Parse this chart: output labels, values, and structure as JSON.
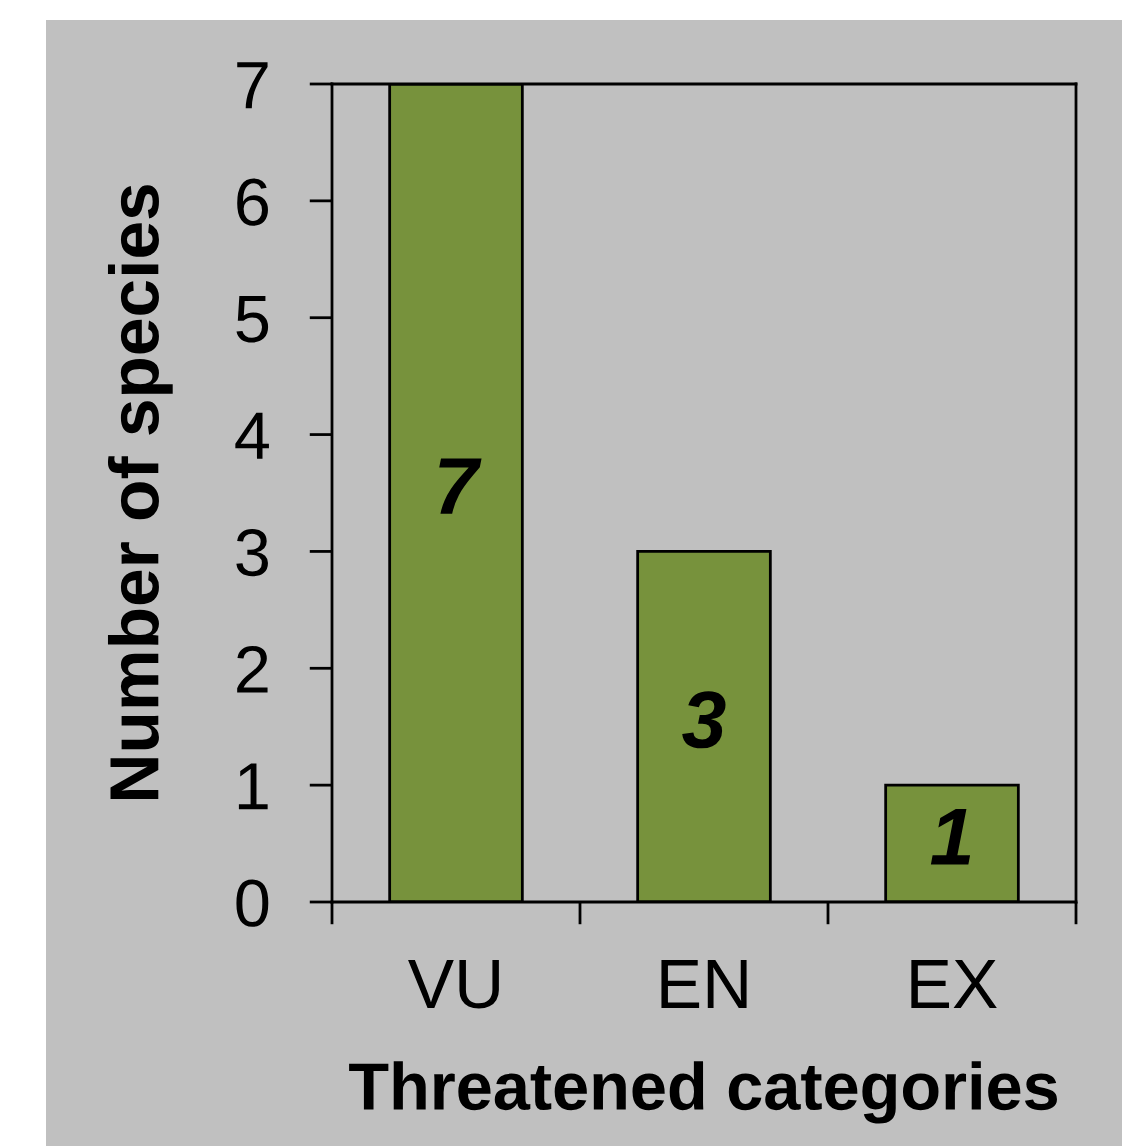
{
  "chart_data": {
    "type": "bar",
    "xlabel": "Threatened categories",
    "ylabel": "Number of species",
    "categories": [
      "VU",
      "EN",
      "EX"
    ],
    "values": [
      7,
      3,
      1
    ],
    "color": "#77923c",
    "ylim": [
      0,
      7
    ],
    "yticks": [
      0,
      1,
      2,
      3,
      4,
      5,
      6,
      7
    ],
    "data_labels": true
  }
}
